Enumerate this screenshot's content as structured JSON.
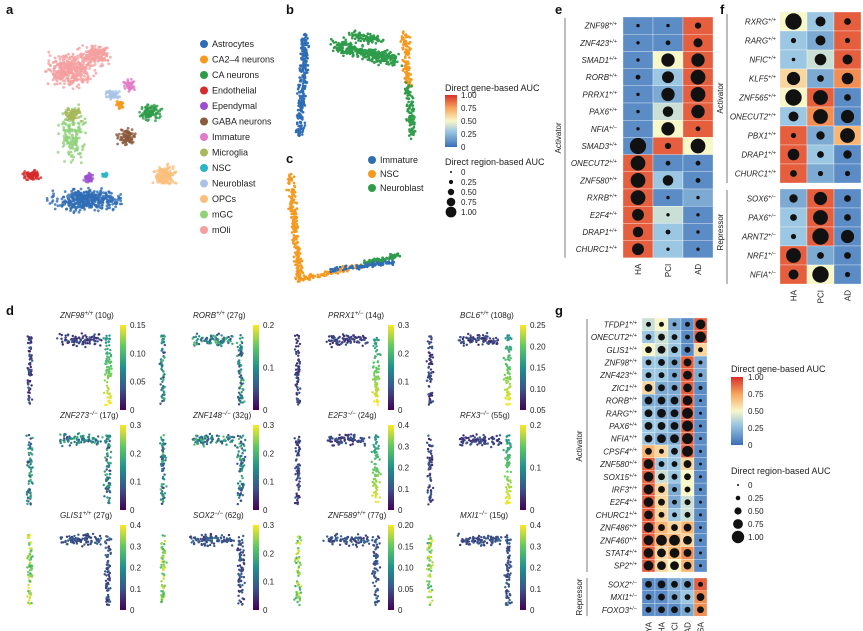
{
  "panel_labels": {
    "a": "a",
    "b": "b",
    "c": "c",
    "d": "d",
    "e": "e",
    "f": "f",
    "g": "g"
  },
  "colors": {
    "Astrocytes": "#2f6db5",
    "CA2–4 neurons": "#f59a1f",
    "CA neurons": "#2e9c4a",
    "Endothelial": "#d62b2b",
    "Ependymal": "#9b4fd0",
    "GABA neurons": "#8c5a3c",
    "Immature": "#e27ac8",
    "Microglia": "#a8b85a",
    "NSC": "#2bb5c8",
    "Neuroblast": "#a9c3e6",
    "OPCs": "#fbbf7c",
    "mGC": "#8fd27a",
    "mOli": "#f5a0a0",
    "heat_low": "#3b6fb6",
    "heat_mid": "#f7f7c8",
    "heat_high": "#d7302a",
    "viridis_low": "#440154",
    "viridis_mid": "#21918c",
    "viridis_high": "#fde725"
  },
  "panel_a": {
    "legend": [
      "Astrocytes",
      "CA2–4 neurons",
      "CA neurons",
      "Endothelial",
      "Ependymal",
      "GABA neurons",
      "Immature",
      "Microglia",
      "NSC",
      "Neuroblast",
      "OPCs",
      "mGC",
      "mOli"
    ]
  },
  "panel_bc": {
    "gene_auc_title": "Direct gene-based AUC",
    "gene_auc_ticks": [
      "1.00",
      "0.75",
      "0.50",
      "0.25",
      "0"
    ],
    "region_auc_title": "Direct region-based AUC",
    "region_auc_ticks": [
      "0",
      "0.25",
      "0.50",
      "0.75",
      "1.00"
    ],
    "c_legend": [
      "Immature",
      "NSC",
      "Neuroblast"
    ]
  },
  "panel_d": [
    {
      "gene": "ZNF98",
      "sup": "+/+",
      "count": "(10g)",
      "ticks": [
        "0.15",
        "0.10",
        "0.05",
        "0"
      ]
    },
    {
      "gene": "RORB",
      "sup": "+/+",
      "count": "(27g)",
      "ticks": [
        "0.2",
        "0.1",
        "0"
      ]
    },
    {
      "gene": "PRRX1",
      "sup": "+/−",
      "count": "(14g)",
      "ticks": [
        "0.3",
        "0.2",
        "0.1",
        "0"
      ]
    },
    {
      "gene": "BCL6",
      "sup": "+/+",
      "count": "(108g)",
      "ticks": [
        "0.25",
        "0.20",
        "0.15",
        "0.10",
        "0.05"
      ]
    },
    {
      "gene": "ZNF273",
      "sup": "−/−",
      "count": "(17g)",
      "ticks": [
        "0.3",
        "0.2",
        "0.1",
        "0"
      ]
    },
    {
      "gene": "ZNF148",
      "sup": "−/−",
      "count": "(32g)",
      "ticks": [
        "0.3",
        "0.2",
        "0.1",
        "0"
      ]
    },
    {
      "gene": "E2F3",
      "sup": "−/−",
      "count": "(24g)",
      "ticks": [
        "0.4",
        "0.3",
        "0.2",
        "0.1",
        "0"
      ]
    },
    {
      "gene": "RFX3",
      "sup": "−/−",
      "count": "(55g)",
      "ticks": [
        "0.2",
        "0.1",
        "0"
      ]
    },
    {
      "gene": "GLIS1",
      "sup": "+/+",
      "count": "(27g)",
      "ticks": [
        "0.4",
        "0.3",
        "0.2",
        "0.1",
        "0"
      ]
    },
    {
      "gene": "SOX2",
      "sup": "−/−",
      "count": "(62g)",
      "ticks": [
        "0.3",
        "0.2",
        "0.1",
        "0"
      ]
    },
    {
      "gene": "ZNF589",
      "sup": "+/+",
      "count": "(77g)",
      "ticks": [
        "0.20",
        "0.15",
        "0.10",
        "0.05",
        "0"
      ]
    },
    {
      "gene": "MXI1",
      "sup": "−/−",
      "count": "(15g)",
      "ticks": [
        "0.4",
        "0.3",
        "0.2",
        "0.1",
        "0"
      ]
    }
  ],
  "panel_e": {
    "columns": [
      "HA",
      "PCI",
      "AD"
    ],
    "group_activator": "Activator",
    "rows": [
      {
        "gene": "ZNF98",
        "sup": "+/+",
        "color": [
          0.1,
          0.1,
          0.9
        ],
        "size": [
          0.1,
          0.1,
          0.3
        ]
      },
      {
        "gene": "ZNF423",
        "sup": "+/+",
        "color": [
          0.1,
          0.1,
          0.9
        ],
        "size": [
          0.1,
          0.2,
          0.5
        ]
      },
      {
        "gene": "SMAD1",
        "sup": "+/+",
        "color": [
          0.1,
          0.5,
          0.9
        ],
        "size": [
          0.1,
          0.8,
          0.8
        ]
      },
      {
        "gene": "RORB",
        "sup": "+/+",
        "color": [
          0.1,
          0.3,
          0.9
        ],
        "size": [
          0.2,
          0.7,
          0.9
        ]
      },
      {
        "gene": "PRRX1",
        "sup": "+/+",
        "color": [
          0.1,
          0.2,
          0.9
        ],
        "size": [
          0.1,
          0.8,
          0.9
        ]
      },
      {
        "gene": "PAX6",
        "sup": "+/+",
        "color": [
          0.1,
          0.4,
          0.9
        ],
        "size": [
          0.1,
          0.6,
          0.8
        ]
      },
      {
        "gene": "NFIA",
        "sup": "+/−",
        "color": [
          0.1,
          0.5,
          0.9
        ],
        "size": [
          0.1,
          0.8,
          0.2
        ]
      },
      {
        "gene": "SMAD3",
        "sup": "+/+",
        "color": [
          0.1,
          0.9,
          0.5
        ],
        "size": [
          1.0,
          0.3,
          0.9
        ]
      },
      {
        "gene": "ONECUT2",
        "sup": "+/+",
        "color": [
          0.9,
          0.1,
          0.1
        ],
        "size": [
          0.9,
          0.2,
          0.2
        ]
      },
      {
        "gene": "ZNF580",
        "sup": "+/+",
        "color": [
          0.9,
          0.3,
          0.1
        ],
        "size": [
          0.9,
          0.6,
          0.2
        ]
      },
      {
        "gene": "RXRB",
        "sup": "+/+",
        "color": [
          0.9,
          0.1,
          0.2
        ],
        "size": [
          0.9,
          0.1,
          0.1
        ]
      },
      {
        "gene": "E2F4",
        "sup": "+/+",
        "color": [
          0.9,
          0.4,
          0.1
        ],
        "size": [
          0.7,
          0.1,
          0.1
        ]
      },
      {
        "gene": "DRAP1",
        "sup": "+/+",
        "color": [
          0.9,
          0.3,
          0.1
        ],
        "size": [
          0.6,
          0.2,
          0.1
        ]
      },
      {
        "gene": "CHURC1",
        "sup": "+/+",
        "color": [
          0.9,
          0.3,
          0.1
        ],
        "size": [
          0.7,
          0.1,
          0.1
        ]
      }
    ]
  },
  "panel_f": {
    "columns": [
      "HA",
      "PCI",
      "AD"
    ],
    "group_activator": "Activator",
    "group_repressor": "Repressor",
    "rows": [
      {
        "gene": "RXRG",
        "sup": "+/+",
        "color": [
          0.5,
          0.3,
          0.9
        ],
        "size": [
          0.9,
          0.5,
          0.3
        ]
      },
      {
        "gene": "RARG",
        "sup": "+/+",
        "color": [
          0.3,
          0.2,
          0.9
        ],
        "size": [
          0.2,
          0.5,
          0.2
        ]
      },
      {
        "gene": "NFIC",
        "sup": "+/+",
        "color": [
          0.3,
          0.4,
          0.9
        ],
        "size": [
          0.1,
          0.6,
          0.5
        ]
      },
      {
        "gene": "KLF5",
        "sup": "+/+",
        "color": [
          0.6,
          0.2,
          0.8
        ],
        "size": [
          0.7,
          0.3,
          0.6
        ]
      },
      {
        "gene": "ZNF565",
        "sup": "+/+",
        "color": [
          0.5,
          0.9,
          0.1
        ],
        "size": [
          0.9,
          0.8,
          0.3
        ]
      },
      {
        "gene": "ONECUT2",
        "sup": "+/+",
        "color": [
          0.3,
          0.8,
          0.1
        ],
        "size": [
          0.5,
          0.8,
          0.7
        ]
      },
      {
        "gene": "PBX1",
        "sup": "+/+",
        "color": [
          0.9,
          0.2,
          0.7
        ],
        "size": [
          0.2,
          0.4,
          0.8
        ]
      },
      {
        "gene": "DRAP1",
        "sup": "+/+",
        "color": [
          0.9,
          0.3,
          0.1
        ],
        "size": [
          0.6,
          0.3,
          0.4
        ]
      },
      {
        "gene": "CHURC1",
        "sup": "+/+",
        "color": [
          0.9,
          0.2,
          0.1
        ],
        "size": [
          0.3,
          0.2,
          0.2
        ]
      },
      {
        "gene": "SOX6",
        "sup": "+/−",
        "color": [
          0.2,
          0.9,
          0.1
        ],
        "size": [
          0.4,
          0.7,
          0.3
        ]
      },
      {
        "gene": "PAX6",
        "sup": "+/−",
        "color": [
          0.3,
          0.9,
          0.1
        ],
        "size": [
          0.3,
          0.8,
          0.3
        ]
      },
      {
        "gene": "ARNT2",
        "sup": "+/−",
        "color": [
          0.3,
          0.9,
          0.1
        ],
        "size": [
          0.2,
          0.9,
          0.7
        ]
      },
      {
        "gene": "NRF1",
        "sup": "+/−",
        "color": [
          0.9,
          0.2,
          0.1
        ],
        "size": [
          0.8,
          0.3,
          0.3
        ]
      },
      {
        "gene": "NFIA",
        "sup": "+/−",
        "color": [
          0.9,
          0.5,
          0.1
        ],
        "size": [
          0.5,
          0.9,
          0.2
        ]
      }
    ]
  },
  "panel_g": {
    "columns": [
      "YA",
      "HA",
      "PCI",
      "AD",
      "SA"
    ],
    "group_activator": "Activator",
    "group_repressor": "Repressor",
    "gene_auc_title": "Direct gene-based AUC",
    "gene_auc_ticks": [
      "1.00",
      "0.75",
      "0.50",
      "0.25",
      "0"
    ],
    "region_auc_title": "Direct region-based AUC",
    "region_auc_ticks": [
      "0",
      "0.25",
      "0.50",
      "0.75",
      "1.00"
    ],
    "rows": [
      {
        "gene": "TFDP1",
        "sup": "+/+",
        "color": [
          0.4,
          0.5,
          0.2,
          0.1,
          0.9
        ],
        "size": [
          0.3,
          0.3,
          0.2,
          0.3,
          0.8
        ]
      },
      {
        "gene": "ONECUT2",
        "sup": "+/+",
        "color": [
          0.3,
          0.4,
          0.3,
          0.1,
          0.9
        ],
        "size": [
          0.4,
          0.5,
          0.4,
          0.3,
          0.9
        ]
      },
      {
        "gene": "GLIS1",
        "sup": "+/+",
        "color": [
          0.5,
          0.4,
          0.3,
          0.1,
          0.6
        ],
        "size": [
          0.5,
          0.6,
          0.5,
          0.4,
          0.3
        ]
      },
      {
        "gene": "ZNF98",
        "sup": "+/+",
        "color": [
          0.3,
          0.3,
          0.2,
          0.9,
          0.2
        ],
        "size": [
          0.4,
          0.5,
          0.4,
          0.6,
          0.2
        ]
      },
      {
        "gene": "ZNF423",
        "sup": "+/+",
        "color": [
          0.3,
          0.3,
          0.2,
          0.9,
          0.2
        ],
        "size": [
          0.4,
          0.4,
          0.3,
          0.7,
          0.2
        ]
      },
      {
        "gene": "ZIC1",
        "sup": "+/+",
        "color": [
          0.6,
          0.2,
          0.2,
          0.9,
          0.1
        ],
        "size": [
          0.6,
          0.5,
          0.4,
          0.7,
          0.2
        ]
      },
      {
        "gene": "RORB",
        "sup": "+/+",
        "color": [
          0.2,
          0.2,
          0.2,
          0.9,
          0.1
        ],
        "size": [
          0.6,
          0.6,
          0.6,
          0.8,
          0.1
        ]
      },
      {
        "gene": "RARG",
        "sup": "+/+",
        "color": [
          0.3,
          0.2,
          0.2,
          0.9,
          0.1
        ],
        "size": [
          0.6,
          0.7,
          0.6,
          0.9,
          0.1
        ]
      },
      {
        "gene": "PAX6",
        "sup": "+/+",
        "color": [
          0.3,
          0.3,
          0.2,
          0.9,
          0.1
        ],
        "size": [
          0.6,
          0.6,
          0.6,
          0.9,
          0.1
        ]
      },
      {
        "gene": "NFIA",
        "sup": "+/+",
        "color": [
          0.3,
          0.2,
          0.2,
          0.9,
          0.1
        ],
        "size": [
          0.6,
          0.7,
          0.7,
          0.9,
          0.1
        ]
      },
      {
        "gene": "CPSF4",
        "sup": "+/+",
        "color": [
          0.7,
          0.6,
          0.3,
          0.9,
          0.1
        ],
        "size": [
          0.5,
          0.3,
          0.5,
          0.9,
          0.1
        ]
      },
      {
        "gene": "ZNF580",
        "sup": "+/+",
        "color": [
          0.9,
          0.3,
          0.3,
          0.6,
          0.1
        ],
        "size": [
          0.8,
          0.4,
          0.4,
          0.6,
          0.1
        ]
      },
      {
        "gene": "SOX15",
        "sup": "+/+",
        "color": [
          0.9,
          0.4,
          0.3,
          0.5,
          0.1
        ],
        "size": [
          0.8,
          0.5,
          0.4,
          0.5,
          0.1
        ]
      },
      {
        "gene": "IRF3",
        "sup": "+/+",
        "color": [
          0.9,
          0.6,
          0.2,
          0.5,
          0.1
        ],
        "size": [
          0.8,
          0.5,
          0.3,
          0.4,
          0.1
        ]
      },
      {
        "gene": "E2F4",
        "sup": "+/+",
        "color": [
          0.9,
          0.6,
          0.2,
          0.4,
          0.1
        ],
        "size": [
          0.8,
          0.5,
          0.3,
          0.4,
          0.1
        ]
      },
      {
        "gene": "CHURC1",
        "sup": "+/+",
        "color": [
          0.9,
          0.6,
          0.3,
          0.4,
          0.1
        ],
        "size": [
          0.7,
          0.4,
          0.3,
          0.4,
          0.1
        ]
      },
      {
        "gene": "ZNF486",
        "sup": "+/+",
        "color": [
          0.9,
          0.7,
          0.6,
          0.7,
          0.1
        ],
        "size": [
          0.8,
          0.5,
          0.5,
          0.6,
          0.1
        ]
      },
      {
        "gene": "ZNF460",
        "sup": "+/+",
        "color": [
          0.9,
          0.7,
          0.7,
          0.6,
          0.1
        ],
        "size": [
          0.8,
          0.9,
          0.9,
          0.7,
          0.1
        ]
      },
      {
        "gene": "STAT4",
        "sup": "+/+",
        "color": [
          0.9,
          0.6,
          0.7,
          0.8,
          0.1
        ],
        "size": [
          0.8,
          0.7,
          0.8,
          0.6,
          0.1
        ]
      },
      {
        "gene": "SP2",
        "sup": "+/+",
        "color": [
          0.9,
          0.6,
          0.5,
          0.7,
          0.1
        ],
        "size": [
          0.8,
          0.7,
          0.7,
          0.6,
          0.1
        ]
      },
      {
        "gene": "SOX2",
        "sup": "+/−",
        "color": [
          0.1,
          0.1,
          0.2,
          0.2,
          0.9
        ],
        "size": [
          0.5,
          0.6,
          0.5,
          0.5,
          0.3
        ]
      },
      {
        "gene": "MXI1",
        "sup": "+/−",
        "color": [
          0.1,
          0.1,
          0.2,
          0.3,
          0.8
        ],
        "size": [
          0.4,
          0.5,
          0.4,
          0.4,
          0.6
        ]
      },
      {
        "gene": "FOXO3",
        "sup": "+/−",
        "color": [
          0.1,
          0.1,
          0.1,
          0.2,
          0.8
        ],
        "size": [
          0.4,
          0.5,
          0.5,
          0.4,
          0.5
        ]
      }
    ]
  }
}
